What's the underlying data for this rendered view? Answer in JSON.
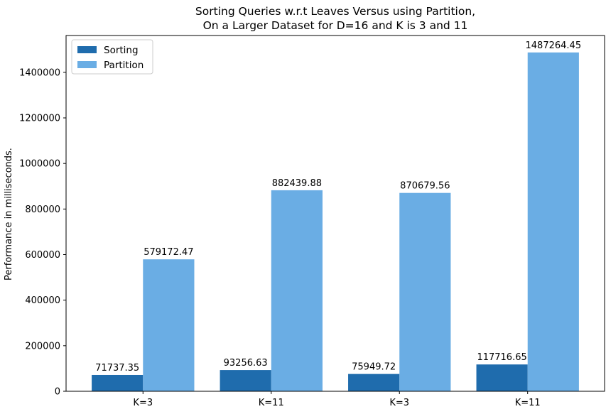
{
  "chart_data": {
    "type": "bar",
    "title_lines": [
      "Sorting Queries w.r.t Leaves Versus using Partition,",
      "On a Larger Dataset for D=16 and K is 3 and 11"
    ],
    "xlabel": "",
    "ylabel": "Performance in milliseconds.",
    "categories": [
      "K=3",
      "K=11",
      "K=3",
      "K=11"
    ],
    "series": [
      {
        "name": "Sorting",
        "color": "#1f6cad",
        "values": [
          71737.35,
          93256.63,
          75949.72,
          117716.65
        ],
        "labels": [
          "71737.35",
          "93256.63",
          "75949.72",
          "117716.65"
        ]
      },
      {
        "name": "Partition",
        "color": "#6aade4",
        "values": [
          579172.47,
          882439.88,
          870679.56,
          1487264.45
        ],
        "labels": [
          "579172.47",
          "882439.88",
          "870679.56",
          "1487264.45"
        ]
      }
    ],
    "ylim": [
      0,
      1561627.67
    ],
    "yticks": [
      0,
      200000,
      400000,
      600000,
      800000,
      1000000,
      1200000,
      1400000
    ],
    "ytick_labels": [
      "0",
      "200000",
      "400000",
      "600000",
      "800000",
      "1000000",
      "1200000",
      "1400000"
    ],
    "grid": false,
    "legend_position": "upper-left"
  }
}
